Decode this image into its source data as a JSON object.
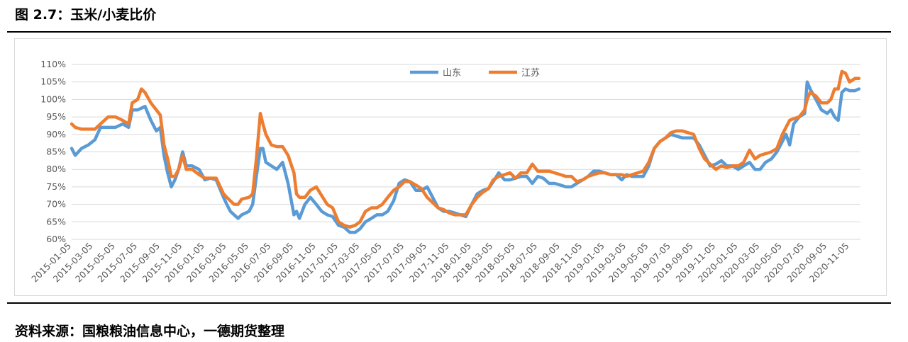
{
  "header": {
    "title": "图 2.7：玉米/小麦比价"
  },
  "footer": {
    "source": "资料来源：国粮粮油信息中心，一德期货整理"
  },
  "colors": {
    "series_shandong": "#5B9BD5",
    "series_jiangsu": "#ED7D31",
    "grid": "#d9d9d9",
    "axis_text": "#595959"
  },
  "chart_data": {
    "type": "line",
    "title": "",
    "xlabel": "",
    "ylabel": "",
    "ylim": [
      0.6,
      1.1
    ],
    "yticks": [
      0.6,
      0.65,
      0.7,
      0.75,
      0.8,
      0.85,
      0.9,
      0.95,
      1.0,
      1.05,
      1.1
    ],
    "ytick_labels": [
      "60%",
      "65%",
      "70%",
      "75%",
      "80%",
      "85%",
      "90%",
      "95%",
      "100%",
      "105%",
      "110%"
    ],
    "xlim": [
      "2015-01-05",
      "2020-12-05"
    ],
    "xtick_labels": [
      "2015-01-05",
      "2015-03-05",
      "2015-05-05",
      "2015-07-05",
      "2015-09-05",
      "2015-11-05",
      "2016-01-05",
      "2016-03-05",
      "2016-05-05",
      "2016-07-05",
      "2016-09-05",
      "2016-11-05",
      "2017-01-05",
      "2017-03-05",
      "2017-05-05",
      "2017-07-05",
      "2017-09-05",
      "2017-11-05",
      "2018-01-05",
      "2018-03-05",
      "2018-05-05",
      "2018-07-05",
      "2018-09-05",
      "2018-11-05",
      "2019-01-05",
      "2019-03-05",
      "2019-05-05",
      "2019-07-05",
      "2019-09-05",
      "2019-11-05",
      "2020-01-05",
      "2020-03-05",
      "2020-05-05",
      "2020-07-05",
      "2020-09-05",
      "2020-11-05"
    ],
    "grid": true,
    "legend_position": "top-center",
    "series": [
      {
        "name": "山东",
        "x": [
          "2015-01-05",
          "2015-01-15",
          "2015-02-01",
          "2015-02-20",
          "2015-03-10",
          "2015-03-25",
          "2015-04-15",
          "2015-05-05",
          "2015-05-25",
          "2015-06-10",
          "2015-06-20",
          "2015-07-05",
          "2015-07-15",
          "2015-07-25",
          "2015-08-10",
          "2015-08-25",
          "2015-09-05",
          "2015-09-15",
          "2015-09-25",
          "2015-10-05",
          "2015-10-15",
          "2015-10-25",
          "2015-11-05",
          "2015-11-15",
          "2015-12-01",
          "2015-12-20",
          "2016-01-05",
          "2016-01-20",
          "2016-02-05",
          "2016-02-25",
          "2016-03-05",
          "2016-03-15",
          "2016-03-25",
          "2016-04-05",
          "2016-04-15",
          "2016-05-05",
          "2016-05-15",
          "2016-05-25",
          "2016-06-05",
          "2016-06-12",
          "2016-06-20",
          "2016-07-05",
          "2016-07-20",
          "2016-08-05",
          "2016-08-20",
          "2016-09-05",
          "2016-09-12",
          "2016-09-20",
          "2016-10-05",
          "2016-10-20",
          "2016-11-05",
          "2016-11-20",
          "2016-12-05",
          "2016-12-20",
          "2017-01-05",
          "2017-01-20",
          "2017-02-05",
          "2017-02-20",
          "2017-03-05",
          "2017-03-20",
          "2017-04-05",
          "2017-04-20",
          "2017-05-05",
          "2017-05-20",
          "2017-06-05",
          "2017-06-20",
          "2017-07-05",
          "2017-07-20",
          "2017-08-05",
          "2017-08-20",
          "2017-09-05",
          "2017-09-20",
          "2017-10-05",
          "2017-10-20",
          "2017-11-05",
          "2017-11-20",
          "2017-12-05",
          "2017-12-20",
          "2018-01-05",
          "2018-01-20",
          "2018-02-05",
          "2018-02-20",
          "2018-03-05",
          "2018-03-20",
          "2018-04-05",
          "2018-04-20",
          "2018-05-05",
          "2018-05-20",
          "2018-06-05",
          "2018-06-20",
          "2018-07-05",
          "2018-07-20",
          "2018-08-05",
          "2018-08-20",
          "2018-09-05",
          "2018-09-20",
          "2018-10-05",
          "2018-10-20",
          "2018-11-05",
          "2018-11-20",
          "2018-12-05",
          "2018-12-20",
          "2019-01-05",
          "2019-01-20",
          "2019-02-05",
          "2019-02-20",
          "2019-03-05",
          "2019-03-20",
          "2019-04-05",
          "2019-04-20",
          "2019-05-05",
          "2019-05-20",
          "2019-06-05",
          "2019-06-20",
          "2019-07-05",
          "2019-07-20",
          "2019-08-05",
          "2019-08-20",
          "2019-09-05",
          "2019-09-20",
          "2019-10-05",
          "2019-10-20",
          "2019-11-05",
          "2019-11-20",
          "2019-12-05",
          "2019-12-20",
          "2020-01-05",
          "2020-01-20",
          "2020-02-05",
          "2020-02-20",
          "2020-03-05",
          "2020-03-20",
          "2020-04-05",
          "2020-04-20",
          "2020-05-05",
          "2020-05-15",
          "2020-05-25",
          "2020-06-05",
          "2020-06-20",
          "2020-07-05",
          "2020-07-12",
          "2020-07-20",
          "2020-08-05",
          "2020-08-20",
          "2020-09-05",
          "2020-09-15",
          "2020-09-25",
          "2020-10-05",
          "2020-10-15",
          "2020-10-25",
          "2020-11-05",
          "2020-11-20",
          "2020-12-01"
        ],
        "values": [
          0.86,
          0.84,
          0.86,
          0.87,
          0.885,
          0.92,
          0.92,
          0.92,
          0.93,
          0.92,
          0.97,
          0.97,
          0.975,
          0.98,
          0.94,
          0.91,
          0.92,
          0.84,
          0.79,
          0.75,
          0.77,
          0.8,
          0.85,
          0.81,
          0.81,
          0.8,
          0.77,
          0.775,
          0.77,
          0.72,
          0.7,
          0.68,
          0.67,
          0.66,
          0.67,
          0.68,
          0.7,
          0.78,
          0.86,
          0.86,
          0.82,
          0.81,
          0.8,
          0.82,
          0.76,
          0.67,
          0.68,
          0.66,
          0.7,
          0.72,
          0.7,
          0.68,
          0.67,
          0.665,
          0.64,
          0.635,
          0.62,
          0.62,
          0.63,
          0.65,
          0.66,
          0.67,
          0.67,
          0.68,
          0.71,
          0.76,
          0.77,
          0.765,
          0.74,
          0.74,
          0.75,
          0.72,
          0.69,
          0.68,
          0.68,
          0.675,
          0.67,
          0.665,
          0.7,
          0.73,
          0.74,
          0.745,
          0.765,
          0.79,
          0.77,
          0.77,
          0.775,
          0.78,
          0.78,
          0.76,
          0.78,
          0.775,
          0.76,
          0.76,
          0.755,
          0.75,
          0.75,
          0.76,
          0.77,
          0.78,
          0.795,
          0.795,
          0.79,
          0.785,
          0.785,
          0.77,
          0.785,
          0.78,
          0.78,
          0.78,
          0.81,
          0.86,
          0.88,
          0.89,
          0.9,
          0.895,
          0.89,
          0.89,
          0.89,
          0.87,
          0.84,
          0.81,
          0.815,
          0.825,
          0.81,
          0.81,
          0.8,
          0.81,
          0.82,
          0.8,
          0.8,
          0.82,
          0.83,
          0.85,
          0.88,
          0.9,
          0.87,
          0.93,
          0.95,
          0.96,
          1.05,
          1.03,
          1.0,
          0.97,
          0.96,
          0.97,
          0.95,
          0.94,
          1.02,
          1.03,
          1.025,
          1.025,
          1.03
        ]
      },
      {
        "name": "江苏",
        "x": [
          "2015-01-05",
          "2015-01-15",
          "2015-02-01",
          "2015-02-20",
          "2015-03-10",
          "2015-03-25",
          "2015-04-15",
          "2015-05-05",
          "2015-05-25",
          "2015-06-10",
          "2015-06-20",
          "2015-07-05",
          "2015-07-15",
          "2015-07-25",
          "2015-08-10",
          "2015-08-25",
          "2015-09-05",
          "2015-09-15",
          "2015-09-25",
          "2015-10-05",
          "2015-10-15",
          "2015-10-25",
          "2015-11-05",
          "2015-11-15",
          "2015-12-01",
          "2015-12-20",
          "2016-01-05",
          "2016-01-20",
          "2016-02-05",
          "2016-02-25",
          "2016-03-05",
          "2016-03-15",
          "2016-03-25",
          "2016-04-05",
          "2016-04-15",
          "2016-05-05",
          "2016-05-15",
          "2016-05-25",
          "2016-06-05",
          "2016-06-12",
          "2016-06-20",
          "2016-07-05",
          "2016-07-20",
          "2016-08-05",
          "2016-08-20",
          "2016-09-05",
          "2016-09-12",
          "2016-09-20",
          "2016-10-05",
          "2016-10-20",
          "2016-11-05",
          "2016-11-20",
          "2016-12-05",
          "2016-12-20",
          "2017-01-05",
          "2017-01-20",
          "2017-02-05",
          "2017-02-20",
          "2017-03-05",
          "2017-03-20",
          "2017-04-05",
          "2017-04-20",
          "2017-05-05",
          "2017-05-20",
          "2017-06-05",
          "2017-06-20",
          "2017-07-05",
          "2017-07-20",
          "2017-08-05",
          "2017-08-20",
          "2017-09-05",
          "2017-09-20",
          "2017-10-05",
          "2017-10-20",
          "2017-11-05",
          "2017-11-20",
          "2017-12-05",
          "2017-12-20",
          "2018-01-05",
          "2018-01-20",
          "2018-02-05",
          "2018-02-20",
          "2018-03-05",
          "2018-03-20",
          "2018-04-05",
          "2018-04-20",
          "2018-05-05",
          "2018-05-20",
          "2018-06-05",
          "2018-06-20",
          "2018-07-05",
          "2018-07-20",
          "2018-08-05",
          "2018-08-20",
          "2018-09-05",
          "2018-09-20",
          "2018-10-05",
          "2018-10-20",
          "2018-11-05",
          "2018-11-20",
          "2018-12-05",
          "2018-12-20",
          "2019-01-05",
          "2019-01-20",
          "2019-02-05",
          "2019-02-20",
          "2019-03-05",
          "2019-03-20",
          "2019-04-05",
          "2019-04-20",
          "2019-05-05",
          "2019-05-20",
          "2019-06-05",
          "2019-06-20",
          "2019-07-05",
          "2019-07-20",
          "2019-08-05",
          "2019-08-20",
          "2019-09-05",
          "2019-09-20",
          "2019-10-05",
          "2019-10-20",
          "2019-11-05",
          "2019-11-20",
          "2019-12-05",
          "2019-12-20",
          "2020-01-05",
          "2020-01-20",
          "2020-02-05",
          "2020-02-20",
          "2020-03-05",
          "2020-03-20",
          "2020-04-05",
          "2020-04-20",
          "2020-05-05",
          "2020-05-15",
          "2020-05-25",
          "2020-06-05",
          "2020-06-20",
          "2020-07-05",
          "2020-07-12",
          "2020-07-20",
          "2020-08-05",
          "2020-08-20",
          "2020-09-05",
          "2020-09-15",
          "2020-09-25",
          "2020-10-05",
          "2020-10-15",
          "2020-10-25",
          "2020-11-05",
          "2020-11-20",
          "2020-12-01"
        ],
        "values": [
          0.93,
          0.92,
          0.915,
          0.915,
          0.915,
          0.93,
          0.95,
          0.95,
          0.94,
          0.93,
          0.99,
          1.0,
          1.03,
          1.02,
          0.99,
          0.97,
          0.955,
          0.87,
          0.83,
          0.78,
          0.78,
          0.8,
          0.84,
          0.8,
          0.8,
          0.785,
          0.775,
          0.775,
          0.775,
          0.73,
          0.72,
          0.71,
          0.7,
          0.7,
          0.715,
          0.72,
          0.73,
          0.83,
          0.96,
          0.93,
          0.9,
          0.87,
          0.865,
          0.865,
          0.84,
          0.79,
          0.73,
          0.72,
          0.72,
          0.74,
          0.75,
          0.725,
          0.7,
          0.69,
          0.65,
          0.64,
          0.635,
          0.64,
          0.65,
          0.68,
          0.69,
          0.69,
          0.7,
          0.72,
          0.74,
          0.75,
          0.765,
          0.765,
          0.755,
          0.745,
          0.72,
          0.705,
          0.69,
          0.685,
          0.675,
          0.67,
          0.67,
          0.67,
          0.7,
          0.72,
          0.735,
          0.745,
          0.77,
          0.78,
          0.785,
          0.79,
          0.775,
          0.79,
          0.79,
          0.815,
          0.795,
          0.795,
          0.795,
          0.79,
          0.785,
          0.78,
          0.78,
          0.765,
          0.77,
          0.78,
          0.785,
          0.79,
          0.79,
          0.785,
          0.785,
          0.785,
          0.78,
          0.785,
          0.79,
          0.795,
          0.82,
          0.86,
          0.88,
          0.89,
          0.905,
          0.91,
          0.91,
          0.905,
          0.9,
          0.86,
          0.83,
          0.815,
          0.8,
          0.81,
          0.805,
          0.81,
          0.81,
          0.82,
          0.855,
          0.83,
          0.84,
          0.845,
          0.85,
          0.86,
          0.9,
          0.92,
          0.94,
          0.945,
          0.95,
          0.97,
          1.0,
          1.02,
          1.01,
          0.99,
          0.99,
          1.0,
          1.03,
          1.03,
          1.08,
          1.075,
          1.05,
          1.06,
          1.06
        ]
      }
    ]
  }
}
